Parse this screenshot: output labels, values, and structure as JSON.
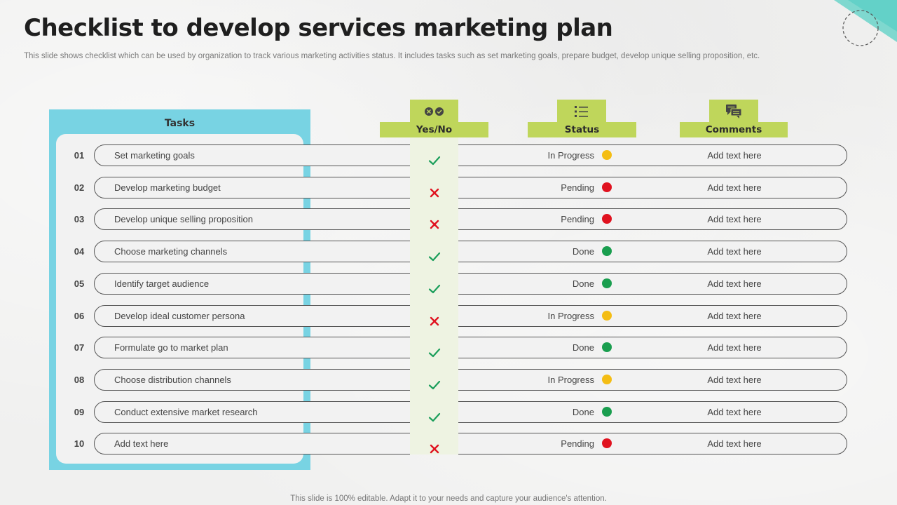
{
  "title": "Checklist to develop services marketing plan",
  "subtitle": "This slide shows checklist which can be used by organization  to track various marketing activities status. It includes tasks such as set marketing goals, prepare budget, develop unique selling proposition, etc.",
  "footer": "This slide is 100% editable. Adapt it to your needs and capture your audience's attention.",
  "headers": {
    "tasks": "Tasks",
    "yesno": "Yes/No",
    "status": "Status",
    "comments": "Comments"
  },
  "colors": {
    "panel": "#78d3e3",
    "header_green": "#bfd65b",
    "check": "#1a9e5a",
    "cross": "#e0121f",
    "in_progress": "#f4bd14",
    "pending": "#e0121f",
    "done": "#1a9e4f"
  },
  "rows": [
    {
      "num": "01",
      "task": "Set marketing goals",
      "done": true,
      "status": "In Progress",
      "comment": "Add text here"
    },
    {
      "num": "02",
      "task": "Develop  marketing budget",
      "done": false,
      "status": "Pending",
      "comment": "Add text here"
    },
    {
      "num": "03",
      "task": "Develop  unique  selling proposition",
      "done": false,
      "status": "Pending",
      "comment": "Add text here"
    },
    {
      "num": "04",
      "task": "Choose marketing channels",
      "done": true,
      "status": "Done",
      "comment": "Add text here"
    },
    {
      "num": "05",
      "task": "Identify target audience",
      "done": true,
      "status": "Done",
      "comment": "Add text here"
    },
    {
      "num": "06",
      "task": "Develop  ideal  customer persona",
      "done": false,
      "status": "In Progress",
      "comment": "Add text here"
    },
    {
      "num": "07",
      "task": "Formulate go to market plan",
      "done": true,
      "status": "Done",
      "comment": "Add text here"
    },
    {
      "num": "08",
      "task": "Choose distribution channels",
      "done": true,
      "status": "In Progress",
      "comment": "Add text here"
    },
    {
      "num": "09",
      "task": "Conduct extensive  market research",
      "done": true,
      "status": "Done",
      "comment": "Add text here"
    },
    {
      "num": "10",
      "task": "Add text here",
      "done": false,
      "status": "Pending",
      "comment": "Add text here"
    }
  ]
}
